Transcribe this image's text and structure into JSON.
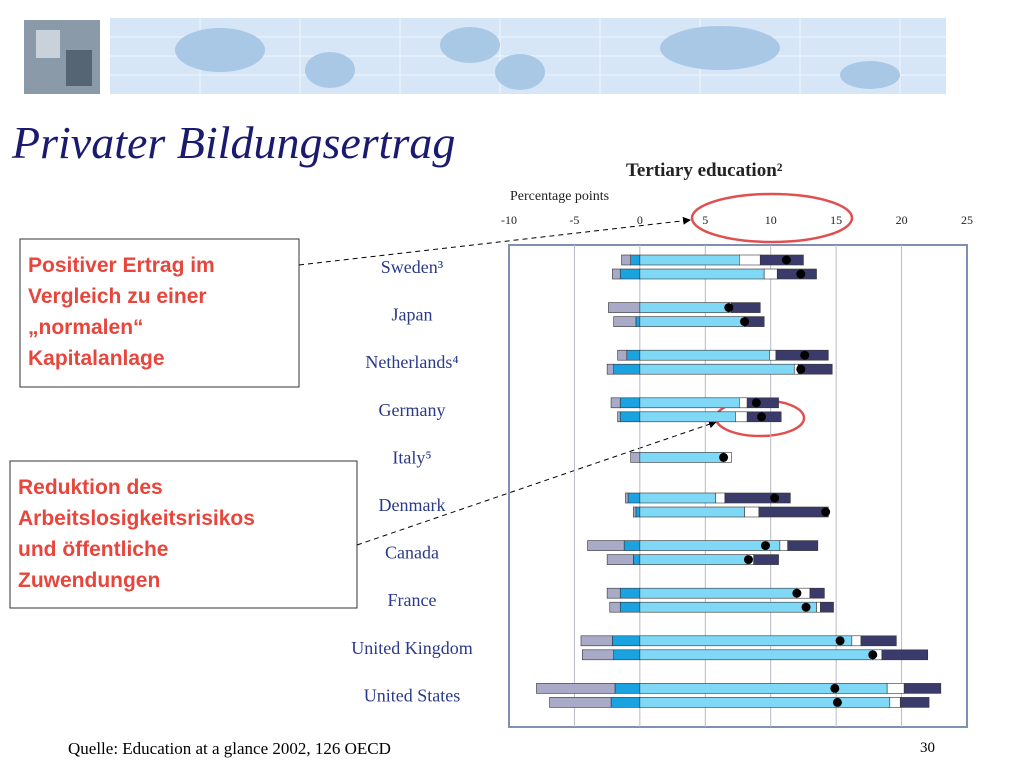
{
  "title": "Privater Bildungsertrag",
  "callouts": [
    {
      "lines": [
        "Positiver Ertrag im",
        "Vergleich zu einer",
        "„normalen“",
        "Kapitalanlage"
      ]
    },
    {
      "lines": [
        "Reduktion des",
        "Arbeitslosigkeitsrisikos",
        "und öffentliche",
        "Zuwendungen"
      ]
    }
  ],
  "source": "Quelle: Education at a glance 2002, 126 OECD",
  "page_number": "30",
  "chart_data": {
    "type": "bar",
    "title": "Tertiary education²",
    "subtitle": "Percentage points",
    "categories": [
      "Sweden³",
      "Japan",
      "Netherlands⁴",
      "Germany",
      "Italy⁵",
      "Denmark",
      "Canada",
      "France",
      "United Kingdom",
      "United States"
    ],
    "xlim": [
      -10,
      25
    ],
    "xticks": [
      -10,
      -5,
      0,
      5,
      10,
      15,
      20,
      25
    ],
    "grid": true,
    "bars": [
      {
        "series": [
          {
            "color": "#1aa3e0",
            "values": [
              -0.7,
              0,
              -1.0,
              -1.5,
              null,
              -0.9,
              -1.2,
              -1.5,
              -2.1,
              -1.9
            ]
          },
          {
            "color": "#a9a9c8",
            "values": [
              -0.7,
              -2.4,
              -0.7,
              -0.7,
              null,
              -0.2,
              -2.8,
              -1.0,
              -2.4,
              -6.0
            ]
          },
          {
            "color": "#7fd8f5",
            "values": [
              7.6,
              6.8,
              9.9,
              7.6,
              null,
              5.8,
              10.7,
              12,
              16.2,
              18.9
            ]
          },
          {
            "color": "#ffffff",
            "values": [
              1.6,
              0.2,
              0.5,
              0.6,
              null,
              0.7,
              0.6,
              1.0,
              0.7,
              1.3
            ]
          },
          {
            "color": "#3b3b6b",
            "values": [
              3.3,
              2.2,
              4.0,
              2.4,
              null,
              5.0,
              2.3,
              1.1,
              2.7,
              2.8
            ]
          }
        ],
        "markers": [
          11.2,
          6.8,
          12.6,
          8.9,
          null,
          10.3,
          9.6,
          12,
          15.3,
          14.9
        ]
      },
      {
        "series": [
          {
            "color": "#1aa3e0",
            "values": [
              -1.5,
              -0.3,
              -2.0,
              -1.5,
              0,
              -0.3,
              -0.5,
              -1.5,
              -2.0,
              -2.2
            ]
          },
          {
            "color": "#a9a9c8",
            "values": [
              -0.6,
              -1.7,
              -0.5,
              -0.2,
              -0.7,
              -0.2,
              -2.0,
              -0.8,
              -2.4,
              -4.7
            ]
          },
          {
            "color": "#7fd8f5",
            "values": [
              9.5,
              8,
              11.8,
              7.3,
              6.4,
              8.0,
              8.2,
              13.5,
              17.8,
              19.1
            ]
          },
          {
            "color": "#ffffff",
            "values": [
              1.0,
              0,
              0.3,
              0.9,
              0.6,
              1.1,
              0.5,
              0.3,
              0.7,
              0.8
            ]
          },
          {
            "color": "#3b3b6b",
            "values": [
              3.0,
              1.5,
              2.6,
              2.6,
              0,
              5.3,
              1.9,
              1.0,
              3.5,
              2.2
            ]
          }
        ],
        "markers": [
          12.3,
          8,
          12.3,
          9.3,
          6.4,
          14.2,
          8.3,
          12.7,
          17.8,
          15.1
        ]
      }
    ]
  }
}
